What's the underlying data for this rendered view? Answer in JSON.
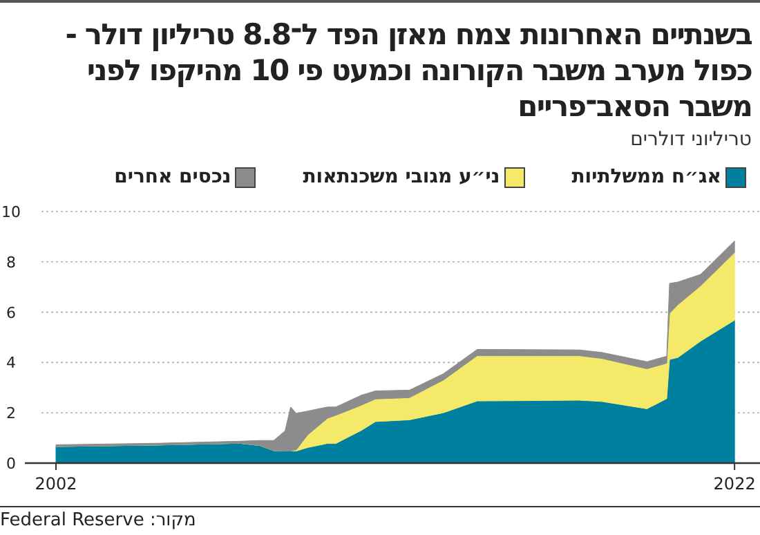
{
  "chart_data": {
    "type": "area",
    "stacked": true,
    "title": "בשנתיים האחרונות צמח מאזן הפד ל־8.8 טריליון דולר - כפול מערב משבר הקורונה וכמעט פי 10 מהיקפו לפני משבר הסאב־פריים",
    "subtitle": "טריליוני דולרים",
    "annotations": [
      "מקור: Federal Reserve"
    ],
    "x": [
      "2002-01",
      "2005-01",
      "2007-06",
      "2008-01",
      "2008-06",
      "2008-10",
      "2008-12",
      "2009-02",
      "2009-06",
      "2010-01",
      "2010-04",
      "2011-01",
      "2011-06",
      "2012-06",
      "2013-06",
      "2014-06",
      "2017-06",
      "2018-02",
      "2019-06",
      "2020-01",
      "2020-02",
      "2020-05",
      "2021-01",
      "2022-01"
    ],
    "series": [
      {
        "name": "אג״ח ממשלתיות",
        "color": "#00809f",
        "values": [
          0.66,
          0.72,
          0.79,
          0.7,
          0.5,
          0.48,
          0.48,
          0.48,
          0.62,
          0.78,
          0.78,
          1.3,
          1.65,
          1.72,
          2.0,
          2.47,
          2.5,
          2.45,
          2.16,
          2.56,
          4.12,
          4.2,
          4.85,
          5.68
        ]
      },
      {
        "name": "ני״ע מגובי משכנתאות",
        "color": "#f5e96a",
        "values": [
          0,
          0,
          0,
          0,
          0,
          0,
          0,
          0.05,
          0.5,
          1.0,
          1.12,
          1.0,
          0.9,
          0.88,
          1.3,
          1.8,
          1.77,
          1.71,
          1.59,
          1.41,
          1.83,
          2.1,
          2.2,
          2.69
        ]
      },
      {
        "name": "נכסים אחרים",
        "color": "#8c8c8d",
        "values": [
          0.07,
          0.07,
          0.08,
          0.2,
          0.4,
          0.8,
          1.75,
          1.45,
          0.95,
          0.45,
          0.33,
          0.4,
          0.32,
          0.3,
          0.25,
          0.25,
          0.23,
          0.24,
          0.28,
          0.28,
          1.19,
          0.9,
          0.45,
          0.46
        ]
      }
    ],
    "xlim": [
      "2001-02",
      "2022-10"
    ],
    "xticks": [
      {
        "value": "2002-01",
        "label": "2002"
      },
      {
        "value": "2022-01",
        "label": "2022"
      }
    ],
    "ylim": [
      0,
      10
    ],
    "yticks": [
      0,
      2,
      4,
      6,
      8,
      10
    ],
    "grid": "y",
    "legend": "top"
  }
}
